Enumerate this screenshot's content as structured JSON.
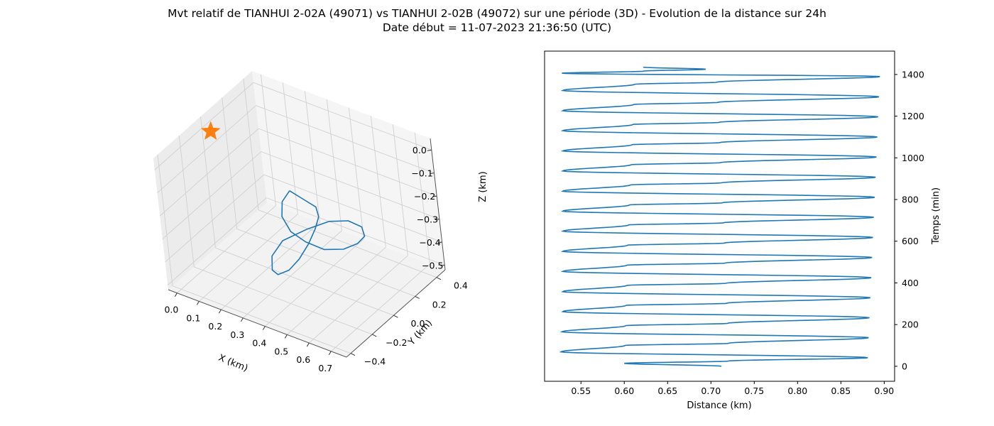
{
  "figure": {
    "title": "Mvt relatif de TIANHUI 2-02A (49071) vs TIANHUI 2-02B (49072) sur une période (3D) - Evolution de la distance sur 24h",
    "subtitle": "Date début = 11-07-2023 21:36:50 (UTC)"
  },
  "chart_data": [
    {
      "type": "line3d",
      "panel": "left",
      "title": "",
      "xlabel": "X (km)",
      "ylabel": "Y (km)",
      "zlabel": "Z (km)",
      "xlim": [
        -0.04,
        0.77
      ],
      "ylim": [
        -0.44,
        0.48
      ],
      "zlim": [
        -0.52,
        0.05
      ],
      "xticks": [
        "0.0",
        "0.1",
        "0.2",
        "0.3",
        "0.4",
        "0.5",
        "0.6",
        "0.7"
      ],
      "yticks": [
        "−0.4",
        "−0.2",
        "0.0",
        "0.2",
        "0.4"
      ],
      "zticks": [
        "0.0",
        "−0.1",
        "−0.2",
        "−0.3",
        "−0.4",
        "−0.5"
      ],
      "grid": true,
      "series": [
        {
          "color": "#1f77b4",
          "points": [
            [
              0.41,
              -0.12,
              -0.06
            ],
            [
              0.45,
              -0.08,
              -0.1
            ],
            [
              0.47,
              -0.02,
              -0.15
            ],
            [
              0.45,
              0.03,
              -0.22
            ],
            [
              0.41,
              0.06,
              -0.3
            ],
            [
              0.37,
              0.06,
              -0.38
            ],
            [
              0.34,
              0.02,
              -0.44
            ],
            [
              0.32,
              -0.04,
              -0.47
            ],
            [
              0.31,
              -0.12,
              -0.46
            ],
            [
              0.33,
              -0.2,
              -0.4
            ],
            [
              0.37,
              -0.26,
              -0.3
            ],
            [
              0.44,
              -0.28,
              -0.2
            ],
            [
              0.54,
              -0.24,
              -0.13
            ],
            [
              0.61,
              -0.17,
              -0.1
            ],
            [
              0.65,
              -0.08,
              -0.12
            ],
            [
              0.66,
              0.01,
              -0.18
            ],
            [
              0.63,
              0.08,
              -0.26
            ],
            [
              0.57,
              0.12,
              -0.33
            ],
            [
              0.5,
              0.12,
              -0.38
            ],
            [
              0.43,
              0.08,
              -0.39
            ],
            [
              0.38,
              0.02,
              -0.35
            ],
            [
              0.36,
              -0.06,
              -0.28
            ],
            [
              0.36,
              -0.12,
              -0.19
            ],
            [
              0.38,
              -0.14,
              -0.11
            ],
            [
              0.41,
              -0.12,
              -0.06
            ]
          ]
        },
        {
          "color": "#ff7f0e",
          "marker": "star",
          "points": [
            [
              0.0,
              0.0,
              0.0
            ]
          ]
        }
      ]
    },
    {
      "type": "line",
      "panel": "right",
      "title": "",
      "xlabel": "Distance (km)",
      "ylabel": "Temps (min)",
      "xlim": [
        0.508,
        0.912
      ],
      "ylim": [
        -72,
        1512
      ],
      "xticks": [
        0.55,
        0.6,
        0.65,
        0.7,
        0.75,
        0.8,
        0.85,
        0.9
      ],
      "yticks": [
        0,
        200,
        400,
        600,
        800,
        1000,
        1200,
        1400
      ],
      "grid": false,
      "series": [
        {
          "color": "#1f77b4",
          "period_min": 96.5,
          "x": [
            0.712,
            0.6,
            0.72,
            0.881,
            0.527,
            0.601,
            0.72,
            0.882,
            0.528,
            0.602,
            0.719,
            0.883,
            0.529,
            0.602,
            0.718,
            0.884,
            0.529,
            0.603,
            0.717,
            0.885,
            0.529,
            0.603,
            0.716,
            0.886,
            0.529,
            0.604,
            0.715,
            0.887,
            0.529,
            0.605,
            0.714,
            0.888,
            0.529,
            0.606,
            0.713,
            0.889,
            0.529,
            0.607,
            0.712,
            0.89,
            0.529,
            0.608,
            0.711,
            0.891,
            0.529,
            0.609,
            0.71,
            0.892,
            0.529,
            0.61,
            0.709,
            0.893,
            0.529,
            0.611,
            0.708,
            0.894,
            0.529,
            0.612,
            0.707,
            0.895,
            0.528,
            0.622,
            0.694,
            0.622
          ],
          "y": [
            0,
            14,
            25,
            41,
            69,
            100,
            110,
            137,
            165,
            195,
            206,
            233,
            262,
            292,
            302,
            329,
            358,
            388,
            398,
            425,
            455,
            485,
            495,
            522,
            551,
            581,
            591,
            618,
            648,
            678,
            688,
            715,
            744,
            774,
            784,
            811,
            840,
            870,
            880,
            907,
            937,
            967,
            977,
            1004,
            1033,
            1063,
            1073,
            1100,
            1130,
            1160,
            1170,
            1197,
            1226,
            1256,
            1266,
            1293,
            1323,
            1353,
            1363,
            1390,
            1406,
            1416,
            1425,
            1435
          ]
        }
      ]
    }
  ]
}
